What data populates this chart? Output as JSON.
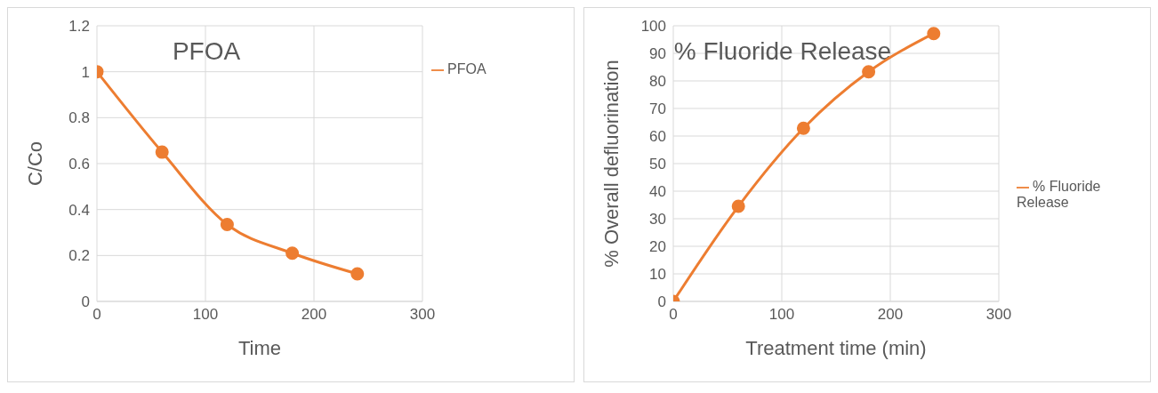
{
  "chart_data": [
    {
      "type": "line",
      "title": "PFOA",
      "xlabel": "Time",
      "ylabel": "C/Co",
      "x": [
        0,
        60,
        120,
        180,
        240
      ],
      "series": [
        {
          "name": "PFOA",
          "color": "#ed7d31",
          "values": [
            1,
            0.65,
            0.335,
            0.21,
            0.12
          ]
        }
      ],
      "xlim": [
        0,
        300
      ],
      "xticks": [
        0,
        100,
        200,
        300
      ],
      "ylim": [
        0,
        1.2
      ],
      "yticks": [
        0,
        0.2,
        0.4,
        0.6,
        0.8,
        1,
        1.2
      ],
      "grid": true,
      "legend": "top right",
      "marker": "circle",
      "line_style": "solid"
    },
    {
      "type": "line",
      "title": "% Fluoride Release",
      "xlabel": "Treatment time (min)",
      "ylabel": "% Overall defluorination",
      "x": [
        0,
        60,
        120,
        180,
        240
      ],
      "series": [
        {
          "name": "% Fluoride Release",
          "color": "#ed7d31",
          "values": [
            0,
            34.5,
            62.8,
            83.3,
            97.2
          ]
        }
      ],
      "xlim": [
        0,
        300
      ],
      "xticks": [
        0,
        100,
        200,
        300
      ],
      "ylim": [
        0,
        100
      ],
      "yticks": [
        0,
        10,
        20,
        30,
        40,
        50,
        60,
        70,
        80,
        90,
        100
      ],
      "grid": true,
      "legend": "right",
      "marker": "circle",
      "line_style": "solid"
    }
  ]
}
